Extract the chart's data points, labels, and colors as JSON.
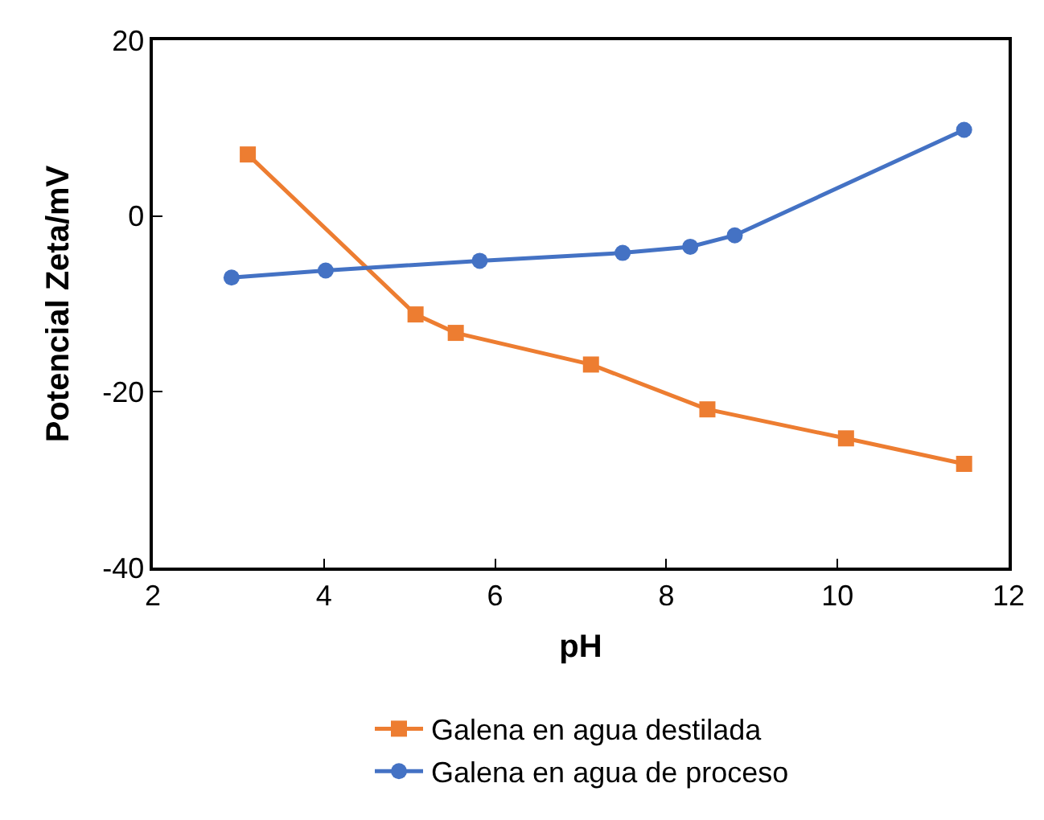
{
  "chart_data": {
    "type": "line",
    "xlabel": "pH",
    "ylabel": "Potencial Zeta/mV",
    "xlim": [
      2,
      12
    ],
    "xticks": [
      2,
      4,
      6,
      8,
      10,
      12
    ],
    "ylim": [
      -40,
      20
    ],
    "yticks": [
      -40,
      -20,
      0,
      20
    ],
    "legend": "bottom",
    "series": [
      {
        "name": "Galena en agua destilada",
        "color": "#ed7d31",
        "marker": "square",
        "x": [
          3.11,
          5.07,
          5.54,
          7.12,
          8.48,
          10.1,
          11.48
        ],
        "values": [
          7.0,
          -11.2,
          -13.3,
          -16.9,
          -22.0,
          -25.3,
          -28.2
        ]
      },
      {
        "name": "Galena en agua de proceso",
        "color": "#4472c4",
        "marker": "circle",
        "x": [
          2.92,
          4.02,
          5.82,
          7.49,
          8.28,
          8.8,
          11.48
        ],
        "values": [
          -7.0,
          -6.2,
          -5.1,
          -4.2,
          -3.5,
          -2.2,
          9.8
        ]
      }
    ]
  }
}
